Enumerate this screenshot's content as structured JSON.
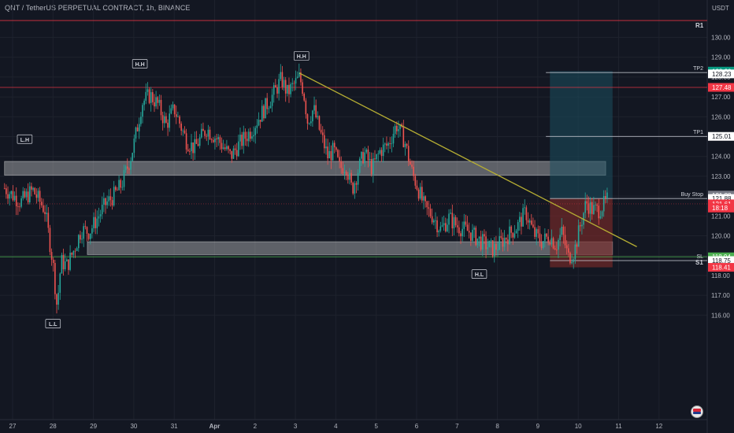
{
  "header": {
    "pair": "QNT / TetherUS PERPETUAL CONTRACT",
    "interval": "1h",
    "exchange": "BINANCE"
  },
  "currency": "USDT",
  "colors": {
    "background": "#131722",
    "grid": "#1e222d",
    "up": "#26a69a",
    "down": "#ef5350",
    "resistance": "#f23645",
    "support": "#4caf50",
    "trendline": "#b5ad33",
    "zone": "#d9d9d9",
    "target_box": "#1b4f5e",
    "stop_box": "#7a2a2a"
  },
  "chart_data": {
    "type": "candlestick",
    "title": "",
    "xlabel": "",
    "ylabel": "",
    "ylim": [
      115.8,
      131.0
    ],
    "y_ticks": [
      "130.00",
      "129.00",
      "128.00",
      "127.00",
      "126.00",
      "125.00",
      "124.00",
      "123.00",
      "122.00",
      "121.00",
      "120.00",
      "119.00",
      "118.00",
      "117.00",
      "116.00"
    ],
    "x_ticks": [
      "27",
      "28",
      "29",
      "30",
      "31",
      "Apr",
      "2",
      "3",
      "4",
      "5",
      "6",
      "7",
      "8",
      "9",
      "10",
      "11",
      "12"
    ],
    "x_tick_days": [
      27,
      28,
      29,
      30,
      31,
      32,
      33,
      34,
      35,
      36,
      37,
      38,
      39,
      40,
      41,
      42,
      43
    ],
    "xlim_days": [
      26.8,
      43.5
    ],
    "candles_close_path": [
      [
        26.8,
        122.4
      ],
      [
        27.2,
        121.7
      ],
      [
        27.5,
        122.3
      ],
      [
        27.8,
        121.3
      ],
      [
        28.0,
        118.6
      ],
      [
        28.05,
        117.5
      ],
      [
        28.1,
        116.4
      ],
      [
        28.2,
        118.7
      ],
      [
        28.35,
        118.5
      ],
      [
        28.5,
        119.2
      ],
      [
        28.7,
        120.3
      ],
      [
        28.9,
        120.2
      ],
      [
        29.1,
        120.9
      ],
      [
        29.3,
        121.6
      ],
      [
        29.5,
        122.0
      ],
      [
        29.7,
        122.6
      ],
      [
        29.9,
        123.8
      ],
      [
        30.0,
        124.6
      ],
      [
        30.1,
        125.6
      ],
      [
        30.2,
        126.7
      ],
      [
        30.4,
        127.1
      ],
      [
        30.6,
        126.6
      ],
      [
        30.8,
        125.6
      ],
      [
        31.0,
        126.4
      ],
      [
        31.3,
        124.8
      ],
      [
        31.5,
        124.4
      ],
      [
        31.8,
        125.4
      ],
      [
        32.1,
        124.8
      ],
      [
        32.4,
        124.0
      ],
      [
        32.6,
        124.6
      ],
      [
        32.9,
        125.3
      ],
      [
        33.2,
        126.3
      ],
      [
        33.5,
        127.3
      ],
      [
        33.65,
        127.9
      ],
      [
        33.8,
        127.2
      ],
      [
        34.0,
        127.7
      ],
      [
        34.1,
        128.0
      ],
      [
        34.2,
        127.3
      ],
      [
        34.3,
        125.8
      ],
      [
        34.45,
        126.4
      ],
      [
        34.6,
        125.3
      ],
      [
        34.8,
        124.0
      ],
      [
        34.95,
        124.3
      ],
      [
        35.1,
        123.4
      ],
      [
        35.25,
        123.6
      ],
      [
        35.4,
        122.3
      ],
      [
        35.55,
        123.3
      ],
      [
        35.7,
        124.2
      ],
      [
        35.9,
        123.4
      ],
      [
        36.1,
        124.3
      ],
      [
        36.3,
        124.6
      ],
      [
        36.5,
        125.6
      ],
      [
        36.7,
        124.8
      ],
      [
        36.9,
        123.1
      ],
      [
        37.0,
        122.6
      ],
      [
        37.2,
        121.4
      ],
      [
        37.4,
        121.0
      ],
      [
        37.6,
        120.3
      ],
      [
        37.8,
        120.9
      ],
      [
        38.0,
        120.5
      ],
      [
        38.3,
        120.2
      ],
      [
        38.6,
        119.7
      ],
      [
        38.9,
        119.3
      ],
      [
        39.2,
        119.9
      ],
      [
        39.5,
        120.5
      ],
      [
        39.7,
        121.2
      ],
      [
        39.9,
        120.1
      ],
      [
        40.1,
        119.7
      ],
      [
        40.3,
        120.0
      ],
      [
        40.45,
        119.5
      ],
      [
        40.6,
        120.2
      ],
      [
        40.75,
        118.9
      ],
      [
        40.9,
        119.2
      ],
      [
        41.05,
        120.5
      ],
      [
        41.2,
        121.7
      ],
      [
        41.35,
        121.3
      ],
      [
        41.5,
        121.3
      ],
      [
        41.65,
        121.6
      ],
      [
        41.75,
        121.9
      ]
    ],
    "levels": [
      {
        "name": "R1",
        "price": 130.85,
        "color": "resistance"
      },
      {
        "name": "",
        "price": 127.48,
        "color": "resistance"
      },
      {
        "name": "",
        "price": 121.61,
        "color": "resistance"
      },
      {
        "name": "S1",
        "price": 118.94,
        "color": "support"
      }
    ],
    "zones": [
      {
        "day_start": 26.8,
        "day_end": 41.68,
        "low": 123.05,
        "high": 123.75
      },
      {
        "day_start": 28.85,
        "day_end": 41.85,
        "low": 119.05,
        "high": 119.7
      }
    ],
    "trendline": {
      "start": [
        34.1,
        128.2
      ],
      "end": [
        42.45,
        119.45
      ]
    },
    "position": {
      "day_start": 40.3,
      "day_end": 41.85,
      "entry": 121.88,
      "target": 128.3,
      "stop": 118.41
    },
    "trade_lines": [
      {
        "label": "TP2",
        "price": 128.23,
        "day_start": 40.2
      },
      {
        "label": "TP1",
        "price": 125.01,
        "day_start": 40.2
      },
      {
        "label": "Buy Stop",
        "price": 121.88,
        "day_start": 40.3
      },
      {
        "label": "SL",
        "price": 118.75,
        "day_start": 40.3
      }
    ],
    "swing_labels": [
      {
        "label": "H.H",
        "day": 30.15,
        "price": 128.65
      },
      {
        "label": "H.H",
        "day": 34.15,
        "price": 129.05
      },
      {
        "label": "L.H",
        "day": 27.3,
        "price": 124.85
      },
      {
        "label": "H.L",
        "day": 38.55,
        "price": 118.05
      },
      {
        "label": "L.L",
        "day": 28.0,
        "price": 115.55
      }
    ],
    "price_tags": [
      {
        "text": "128.30",
        "price": 128.3,
        "bg": "#089981",
        "fg": "#ffffff"
      },
      {
        "text": "128.23",
        "price": 128.16,
        "bg": "#ffffff",
        "fg": "#131722"
      },
      {
        "text": "127.48",
        "price": 127.48,
        "bg": "#f23645",
        "fg": "#ffffff"
      },
      {
        "text": "125.01",
        "price": 125.01,
        "bg": "#ffffff",
        "fg": "#131722"
      },
      {
        "text": "121.88",
        "price": 122.05,
        "bg": "#787b86",
        "fg": "#ffffff"
      },
      {
        "text": "121.88",
        "price": 121.88,
        "bg": "#ffffff",
        "fg": "#131722"
      },
      {
        "text": "121.61",
        "price": 121.61,
        "bg": "#f23645",
        "fg": "#ffffff"
      },
      {
        "text": "18:18",
        "price": 121.4,
        "bg": "#f23645",
        "fg": "#ffffff"
      },
      {
        "text": "118.94",
        "price": 118.94,
        "bg": "#4caf50",
        "fg": "#ffffff"
      },
      {
        "text": "118.75",
        "price": 118.75,
        "bg": "#ffffff",
        "fg": "#131722"
      },
      {
        "text": "118.41",
        "price": 118.41,
        "bg": "#f23645",
        "fg": "#ffffff"
      }
    ]
  }
}
